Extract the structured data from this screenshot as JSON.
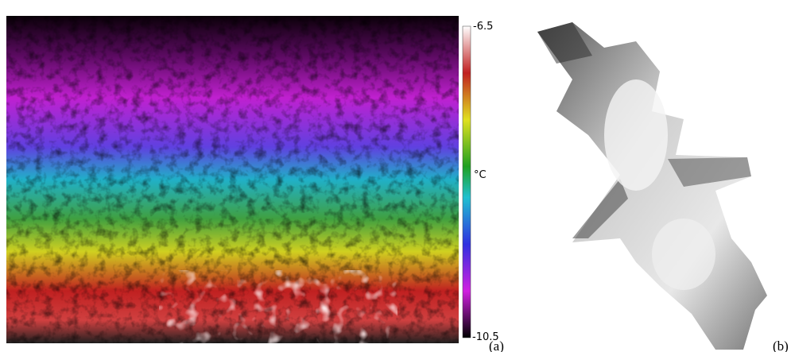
{
  "colorbar": {
    "max_label": "-6.5",
    "unit": "°C",
    "min_label": "-10.5"
  },
  "panel_labels": [
    "(a)",
    "(b)"
  ]
}
